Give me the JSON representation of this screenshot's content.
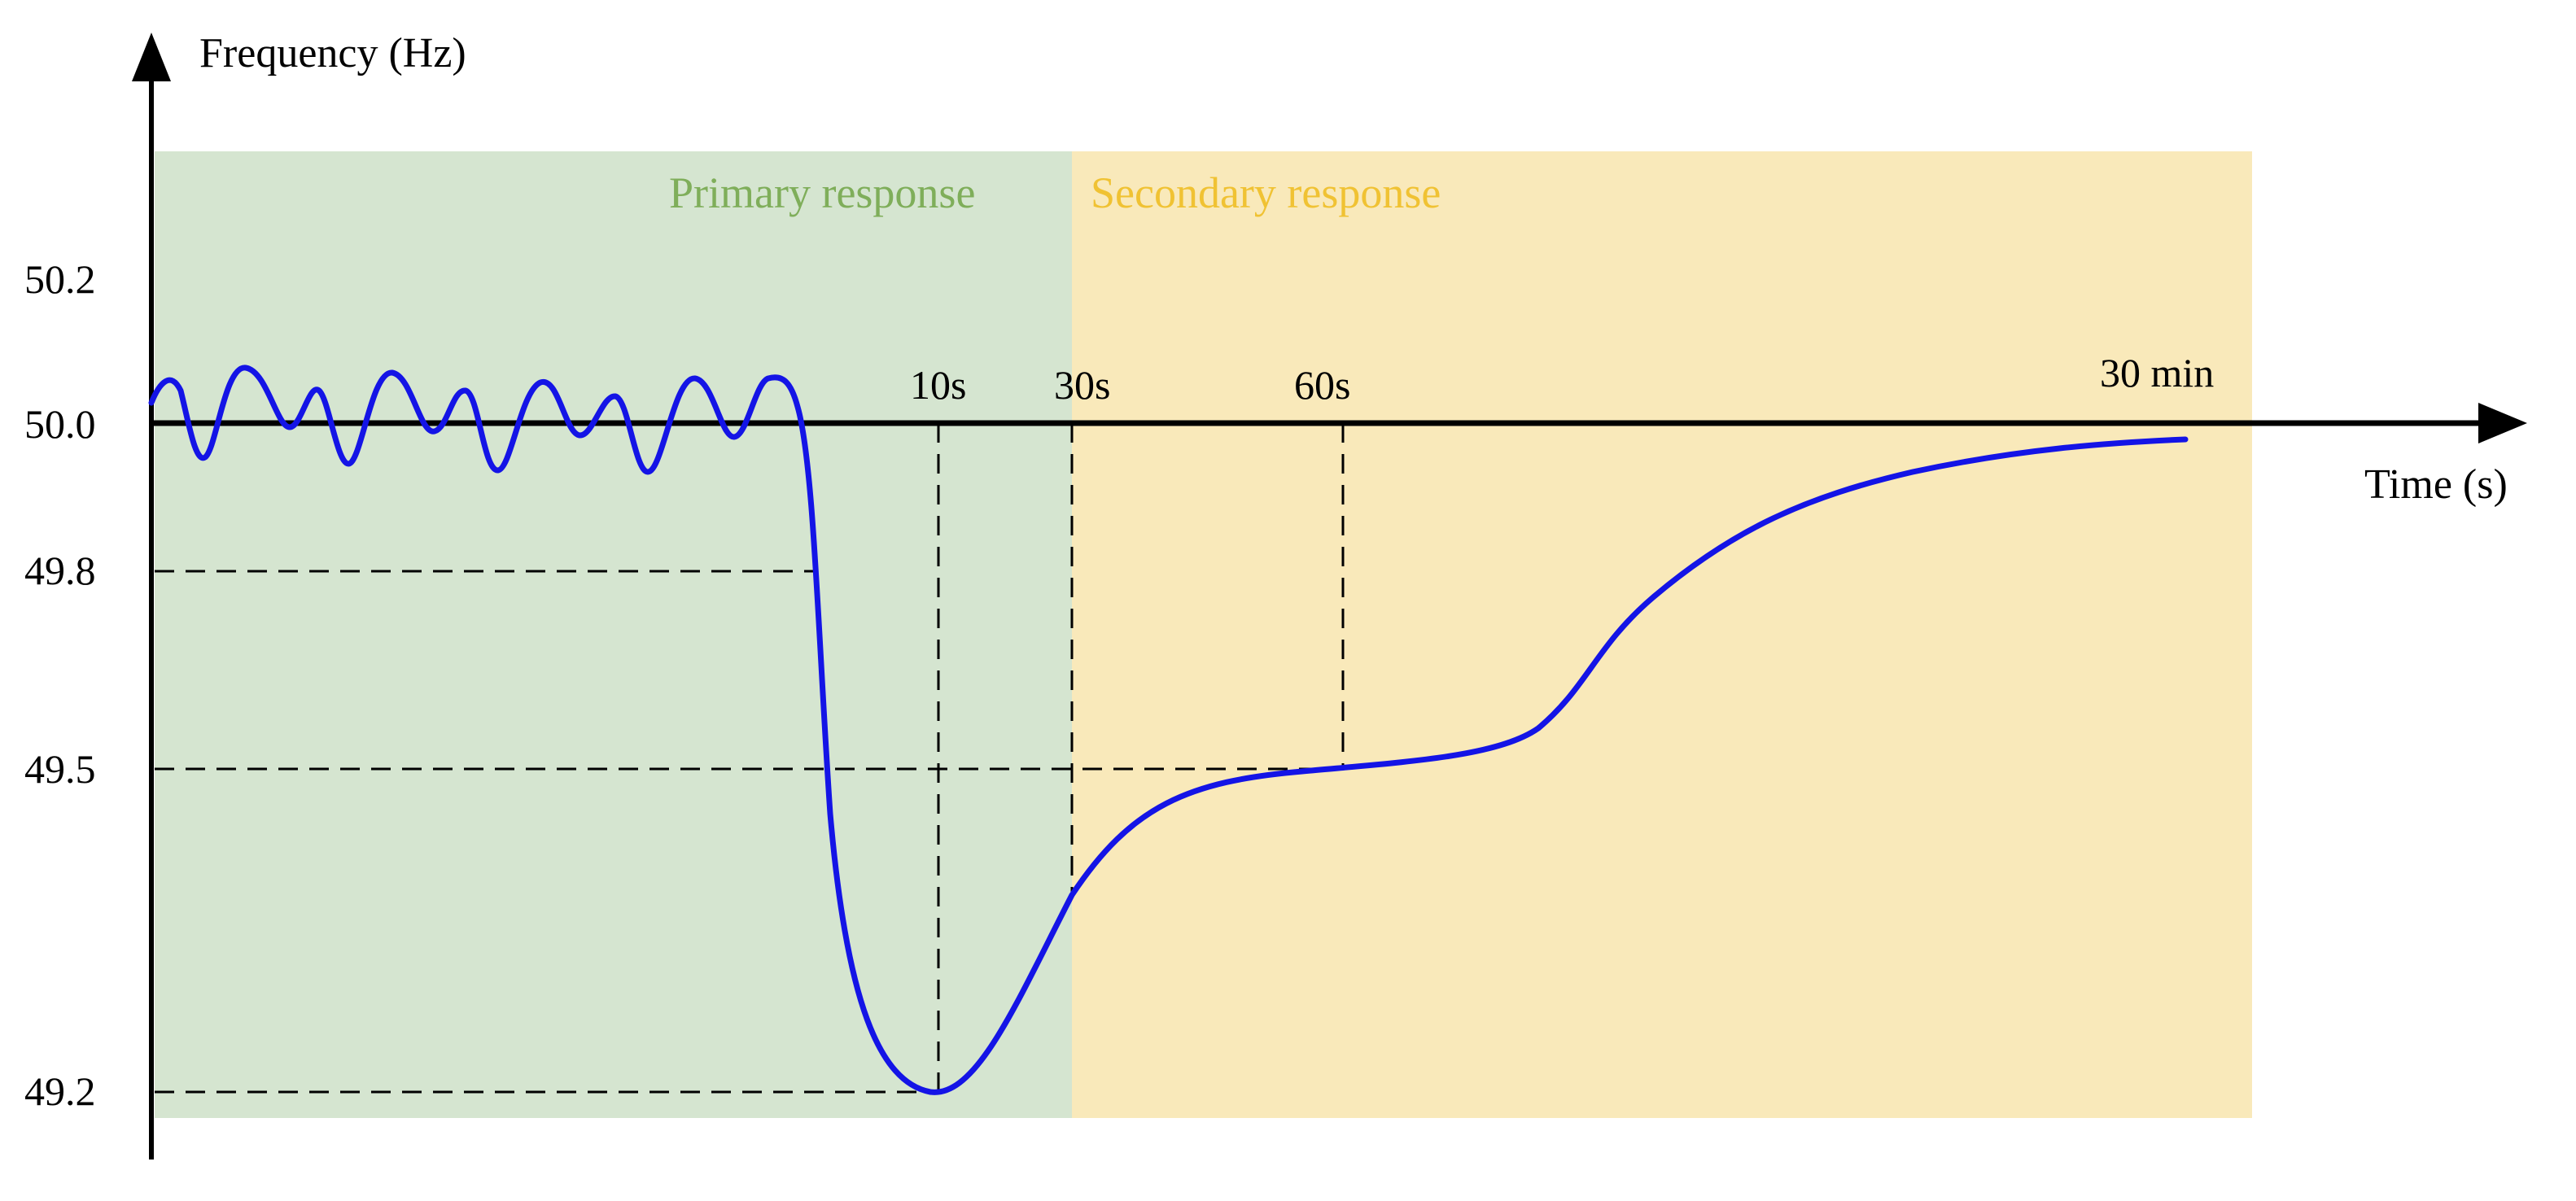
{
  "chart_data": {
    "type": "line",
    "y_axis_label": "Frequency (Hz)",
    "x_axis_label": "Time (s)",
    "y_ticks": [
      "50.2",
      "50.0",
      "49.8",
      "49.5",
      "49.2"
    ],
    "time_markers": [
      "10s",
      "30s",
      "60s",
      "30 min"
    ],
    "regions": [
      {
        "label": "Primary response",
        "color": "#d5e5d0"
      },
      {
        "label": "Secondary response",
        "color": "#f9e9ba"
      }
    ],
    "curve_color": "#1414e6",
    "nominal_frequency": 50.0,
    "nadir_frequency": 49.2,
    "settled_frequency": 49.5,
    "trigger_frequency": 49.8
  }
}
